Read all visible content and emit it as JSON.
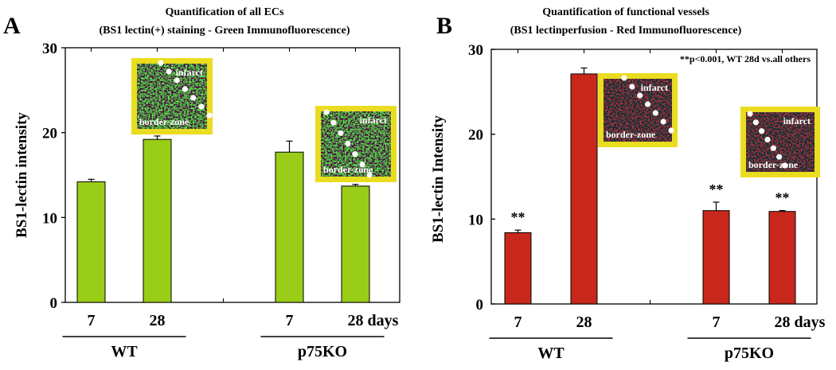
{
  "chart_data": [
    {
      "type": "bar",
      "panel_letter": "A",
      "title": "Quantification of all ECs",
      "subtitle": "(BS1 lectin(+) staining - Green Immunofluorescence)",
      "ylabel": "BS1-lectin intensity",
      "ylim": [
        0,
        30
      ],
      "yticks": [
        0,
        10,
        20,
        30
      ],
      "categories": [
        "7",
        "28",
        "7",
        "28 days"
      ],
      "slots": [
        0,
        1,
        3,
        4
      ],
      "groups": [
        {
          "label": "WT",
          "from": 0,
          "to": 1
        },
        {
          "label": "p75KO",
          "from": 3,
          "to": 4
        }
      ],
      "series": [
        {
          "name": "BS1 lectin(+)",
          "color": "#9acd17",
          "values": [
            14.2,
            19.2,
            17.7,
            13.7
          ],
          "errors": [
            0.3,
            0.4,
            1.3,
            0.2
          ]
        }
      ],
      "significance": [
        "",
        "",
        "",
        ""
      ],
      "annotation": "",
      "insets": [
        {
          "tone": "green",
          "label_top": "infarct",
          "label_bottom": "border-zone"
        },
        {
          "tone": "green",
          "label_top": "infarct",
          "label_bottom": "border-zone"
        }
      ]
    },
    {
      "type": "bar",
      "panel_letter": "B",
      "title": "Quantification of functional vessels",
      "subtitle": "(BS1 lectinperfusion - Red Immunofluorescence)",
      "ylabel": "BS1-lectin Intensity",
      "ylim": [
        0,
        30
      ],
      "yticks": [
        0,
        10,
        20,
        30
      ],
      "categories": [
        "7",
        "28",
        "7",
        "28 days"
      ],
      "slots": [
        0,
        1,
        3,
        4
      ],
      "groups": [
        {
          "label": "WT",
          "from": 0,
          "to": 1
        },
        {
          "label": "p75KO",
          "from": 3,
          "to": 4
        }
      ],
      "series": [
        {
          "name": "BS1 lectin perfusion",
          "color": "#c8281c",
          "values": [
            8.4,
            27.1,
            11.0,
            10.9
          ],
          "errors": [
            0.3,
            0.7,
            1.0,
            0.1
          ]
        }
      ],
      "significance": [
        "**",
        "",
        "**",
        "**"
      ],
      "annotation": "**p<0.001, WT 28d vs.all others",
      "insets": [
        {
          "tone": "red",
          "label_top": "infarct",
          "label_bottom": "border-zone"
        },
        {
          "tone": "red",
          "label_top": "infarct",
          "label_bottom": "border-zone"
        }
      ]
    }
  ]
}
